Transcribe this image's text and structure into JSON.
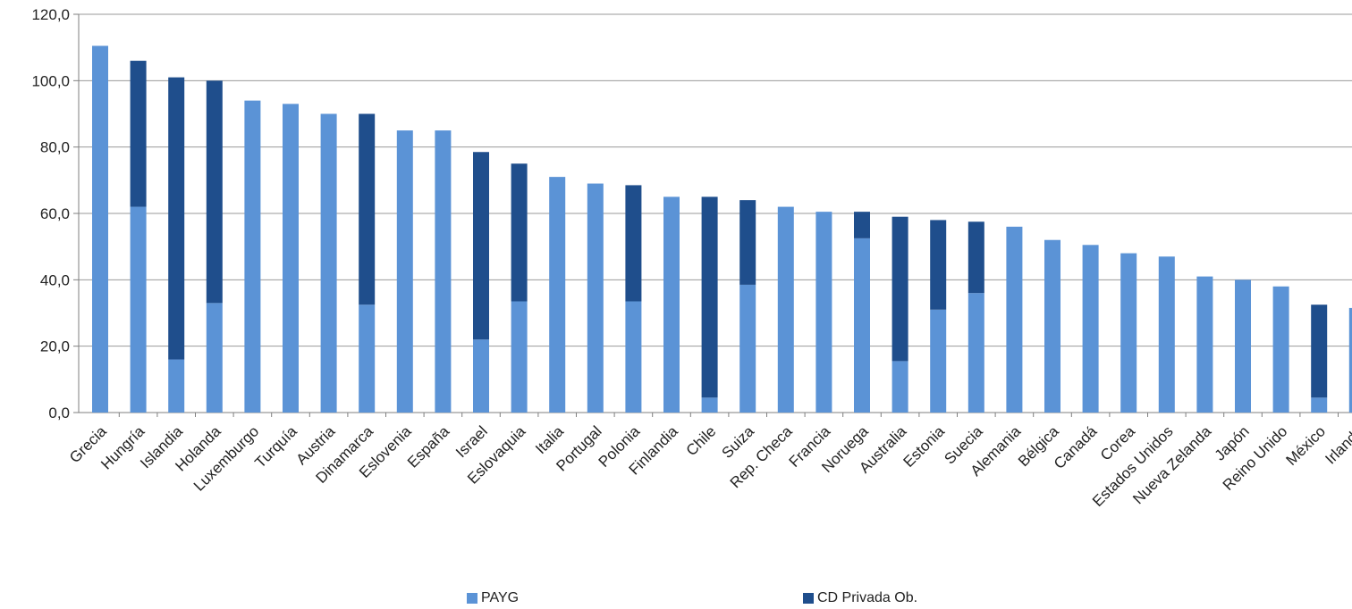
{
  "chart_data": {
    "type": "bar",
    "stacked": true,
    "categories": [
      "Grecia",
      "Hungría",
      "Islandia",
      "Holanda",
      "Luxemburgo",
      "Turquía",
      "Austria",
      "Dinamarca",
      "Eslovenia",
      "España",
      "Israel",
      "Eslovaquia",
      "Italia",
      "Portugal",
      "Polonia",
      "Finlandia",
      "Chile",
      "Suiza",
      "Rep. Checa",
      "Francia",
      "Noruega",
      "Australia",
      "Estonia",
      "Suecia",
      "Alemania",
      "Bélgica",
      "Canadá",
      "Corea",
      "Estados Unidos",
      "Nueva Zelanda",
      "Japón",
      "Reino Unido",
      "México",
      "Irlanda"
    ],
    "series": [
      {
        "name": "PAYG",
        "color": "#5b93d6",
        "values": [
          110.5,
          62.0,
          16.0,
          33.0,
          94.0,
          93.0,
          90.0,
          32.5,
          85.0,
          85.0,
          22.0,
          33.5,
          71.0,
          69.0,
          33.5,
          65.0,
          4.5,
          38.5,
          62.0,
          60.5,
          52.5,
          15.5,
          31.0,
          36.0,
          56.0,
          52.0,
          50.5,
          48.0,
          47.0,
          41.0,
          40.0,
          38.0,
          4.5,
          31.5
        ]
      },
      {
        "name": "CD Privada Ob.",
        "color": "#1f4e8c",
        "values": [
          0,
          44.0,
          85.0,
          67.0,
          0,
          0,
          0,
          57.5,
          0,
          0,
          56.5,
          41.5,
          0,
          0,
          35.0,
          0,
          60.5,
          25.5,
          0,
          0,
          8.0,
          43.5,
          27.0,
          21.5,
          0,
          0,
          0,
          0,
          0,
          0,
          0,
          0,
          28.0,
          0
        ]
      }
    ],
    "ylim": [
      0,
      120
    ],
    "yticks": [
      "0,0",
      "20,0",
      "40,0",
      "60,0",
      "80,0",
      "100,0",
      "120,0"
    ],
    "ytick_values": [
      0,
      20,
      40,
      60,
      80,
      100,
      120
    ],
    "grid": true,
    "legend_position": "bottom",
    "title": "",
    "xlabel": "",
    "ylabel": ""
  },
  "legend": {
    "payg_label": "PAYG",
    "cd_label": "CD Privada Ob."
  }
}
